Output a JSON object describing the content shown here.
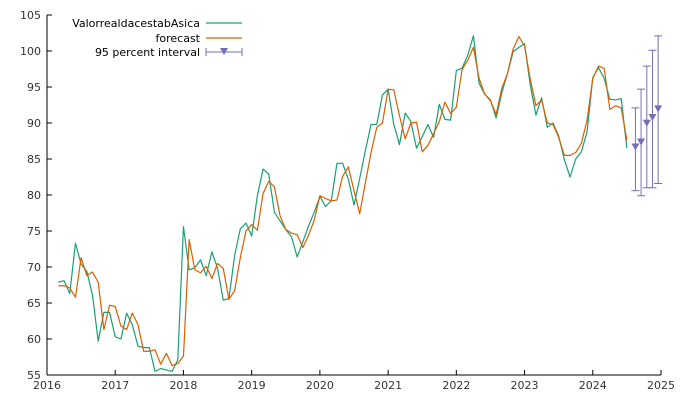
{
  "chart_data": {
    "type": "line",
    "title": "",
    "xlabel": "",
    "ylabel": "",
    "xlim": [
      2016.0,
      2025.0
    ],
    "ylim": [
      55,
      105
    ],
    "x_ticks": [
      2016,
      2017,
      2018,
      2019,
      2020,
      2021,
      2022,
      2023,
      2024,
      2025
    ],
    "y_ticks": [
      55,
      60,
      65,
      70,
      75,
      80,
      85,
      90,
      95,
      100,
      105
    ],
    "grid": false,
    "legend_position": "top-left",
    "x_start": 2016.167,
    "x_step": 0.08333,
    "series": [
      {
        "name": "ValorrealdacestabAsica",
        "color": "#1a9e77",
        "values": [
          67.9,
          68.1,
          66.3,
          73.3,
          70.4,
          69.4,
          66.1,
          59.7,
          63.7,
          63.7,
          60.3,
          60.0,
          63.6,
          62.0,
          59.0,
          58.8,
          58.8,
          55.5,
          55.9,
          55.7,
          55.5,
          57.1,
          75.6,
          69.6,
          69.9,
          71.0,
          68.8,
          72.1,
          69.8,
          65.4,
          65.6,
          71.6,
          75.3,
          76.1,
          74.3,
          79.9,
          83.6,
          82.9,
          77.6,
          76.4,
          75.2,
          74.2,
          71.4,
          73.5,
          75.7,
          77.6,
          79.8,
          78.4,
          79.2,
          84.4,
          84.4,
          82.2,
          78.6,
          82.3,
          86.2,
          89.8,
          89.8,
          93.9,
          94.7,
          89.8,
          87.0,
          91.4,
          90.2,
          86.5,
          88.1,
          89.8,
          88.0,
          92.6,
          90.5,
          90.4,
          97.3,
          97.6,
          99.4,
          102.1,
          95.5,
          94.0,
          93.2,
          90.7,
          94.2,
          96.9,
          99.9,
          100.5,
          101.0,
          95.3,
          91.1,
          93.5,
          89.4,
          90.0,
          88.2,
          84.9,
          82.5,
          85.0,
          86.0,
          88.8,
          96.3,
          97.7,
          96.2,
          93.3,
          93.2,
          93.4,
          86.5
        ]
      },
      {
        "name": "forecast",
        "color": "#d95f02",
        "values": [
          67.4,
          67.4,
          67.1,
          65.8,
          71.3,
          68.8,
          69.3,
          67.9,
          61.3,
          64.7,
          64.5,
          61.8,
          61.3,
          63.6,
          62.0,
          58.3,
          58.3,
          58.5,
          56.5,
          58.0,
          56.3,
          56.6,
          57.6,
          73.8,
          69.6,
          69.2,
          70.1,
          68.4,
          70.5,
          69.8,
          65.5,
          66.7,
          71.3,
          75.0,
          75.9,
          75.1,
          80.2,
          81.9,
          81.1,
          77.1,
          75.2,
          74.7,
          74.5,
          72.7,
          74.4,
          76.5,
          79.9,
          79.5,
          79.2,
          79.3,
          82.6,
          83.9,
          80.6,
          77.4,
          81.7,
          85.9,
          89.4,
          90.0,
          94.7,
          94.6,
          91.0,
          87.8,
          90.0,
          90.1,
          86.0,
          86.9,
          88.5,
          90.2,
          92.9,
          91.3,
          92.2,
          97.4,
          98.7,
          100.5,
          96.2,
          94.0,
          93.1,
          91.2,
          94.8,
          96.9,
          100.3,
          102.0,
          100.7,
          96.1,
          92.4,
          93.2,
          90.0,
          89.8,
          88.0,
          85.5,
          85.5,
          85.9,
          87.2,
          90.4,
          96.2,
          97.9,
          97.6,
          91.9,
          92.4,
          92.1,
          87.6
        ]
      }
    ],
    "interval": {
      "name": "95 percent interval",
      "color": "#7570b3",
      "x": [
        2024.625,
        2024.708,
        2024.792,
        2024.875,
        2024.958
      ],
      "center": [
        86.6,
        87.3,
        89.9,
        90.7,
        91.9
      ],
      "low": [
        80.6,
        79.9,
        81.0,
        81.0,
        81.6
      ],
      "high": [
        92.1,
        94.7,
        97.9,
        100.1,
        102.1
      ]
    }
  }
}
